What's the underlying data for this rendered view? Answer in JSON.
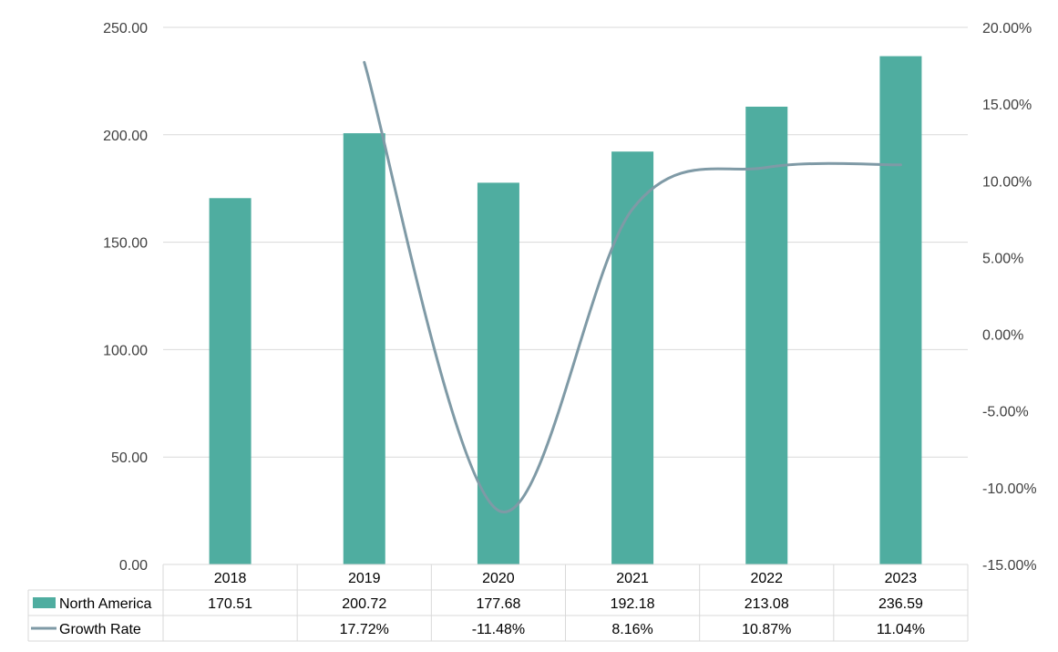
{
  "chart_data": {
    "type": "bar+line",
    "categories": [
      "2018",
      "2019",
      "2020",
      "2021",
      "2022",
      "2023"
    ],
    "series": [
      {
        "name": "North America",
        "kind": "bar",
        "axis": "left",
        "values": [
          170.51,
          200.72,
          177.68,
          192.18,
          213.08,
          236.59
        ],
        "labels": [
          "170.51",
          "200.72",
          "177.68",
          "192.18",
          "213.08",
          "236.59"
        ]
      },
      {
        "name": "Growth Rate",
        "kind": "line",
        "axis": "right",
        "values": [
          null,
          17.72,
          -11.48,
          8.16,
          10.87,
          11.04
        ],
        "labels": [
          "",
          "17.72%",
          "-11.48%",
          "8.16%",
          "10.87%",
          "11.04%"
        ]
      }
    ],
    "y_left": {
      "range": [
        0,
        250
      ],
      "ticks": [
        "0.00",
        "50.00",
        "100.00",
        "150.00",
        "200.00",
        "250.00"
      ]
    },
    "y_right": {
      "range": [
        -15,
        20
      ],
      "ticks": [
        "-15.00%",
        "-10.00%",
        "-5.00%",
        "0.00%",
        "5.00%",
        "10.00%",
        "15.00%",
        "20.00%"
      ]
    },
    "grid": true,
    "legend": "data-table",
    "colors": {
      "bar": "#4fada0",
      "line": "#7f9aa6",
      "grid": "#d9d9d9",
      "table": "#d9d9d9"
    }
  }
}
